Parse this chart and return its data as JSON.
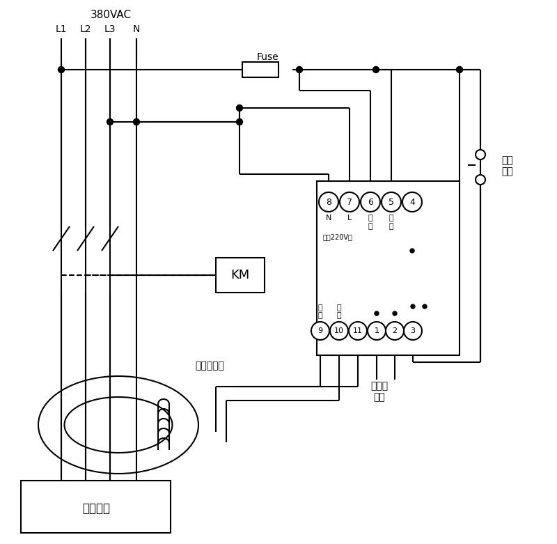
{
  "bg_color": "#ffffff",
  "line_color": "#000000",
  "voltage_label": "380VAC",
  "phase_labels": [
    "L1",
    "L2",
    "L3",
    "N"
  ],
  "fuse_label": "Fuse",
  "km_label": "KM",
  "transformer_label": "零序互感器",
  "device_label": "用户设备",
  "alarm_label": "接声光\n报警",
  "self_lock_label": "自锁\n开关",
  "terminal_top": [
    "8",
    "7",
    "6",
    "5",
    "4"
  ],
  "terminal_bottom": [
    "9",
    "10",
    "11",
    "1",
    "2",
    "3"
  ],
  "sub_label": "电源220V～"
}
